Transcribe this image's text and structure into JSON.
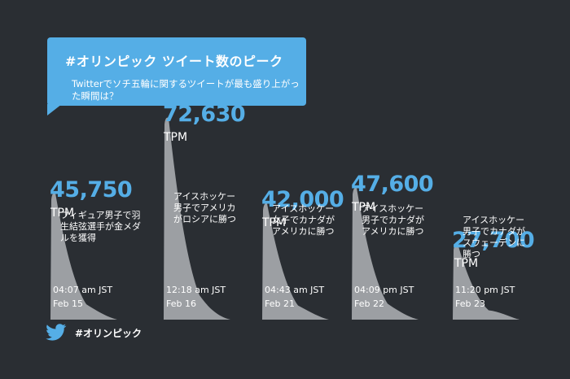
{
  "header": {
    "title": "#オリンピック ツイート数のピーク",
    "description": "Twitterでソチ五輪に関するツイートが最も盛り上がった瞬間は？"
  },
  "footer": {
    "icon": "twitter-bird-icon",
    "hashtag": "#オリンピック"
  },
  "colors": {
    "background": "#2a2e33",
    "accent": "#55aee6",
    "peak_fill": "#9c9fa3"
  },
  "chart_data": {
    "type": "area",
    "unit": "TPM",
    "peaks": [
      {
        "value": 45750,
        "value_label": "45,750",
        "event": "フィギュア男子で羽生結弦選手が金メダルを獲得",
        "time": "04:07 am JST",
        "date": "Feb 15"
      },
      {
        "value": 72630,
        "value_label": "72,630",
        "event": "アイスホッケー男子でアメリカがロシアに勝つ",
        "time": "12:18 am JST",
        "date": "Feb 16"
      },
      {
        "value": 42000,
        "value_label": "42,000",
        "event": "アイスホッケー女子でカナダがアメリカに勝つ",
        "time": "04:43 am JST",
        "date": "Feb 21"
      },
      {
        "value": 47600,
        "value_label": "47,600",
        "event": "アイスホッケー男子でカナダがアメリカに勝つ",
        "time": "04:09 pm JST",
        "date": "Feb 22"
      },
      {
        "value": 27700,
        "value_label": "27,700",
        "event": "アイスホッケー男子でカナダがスウェーデンに勝つ",
        "time": "11:20 pm JST",
        "date": "Feb 23"
      }
    ]
  }
}
